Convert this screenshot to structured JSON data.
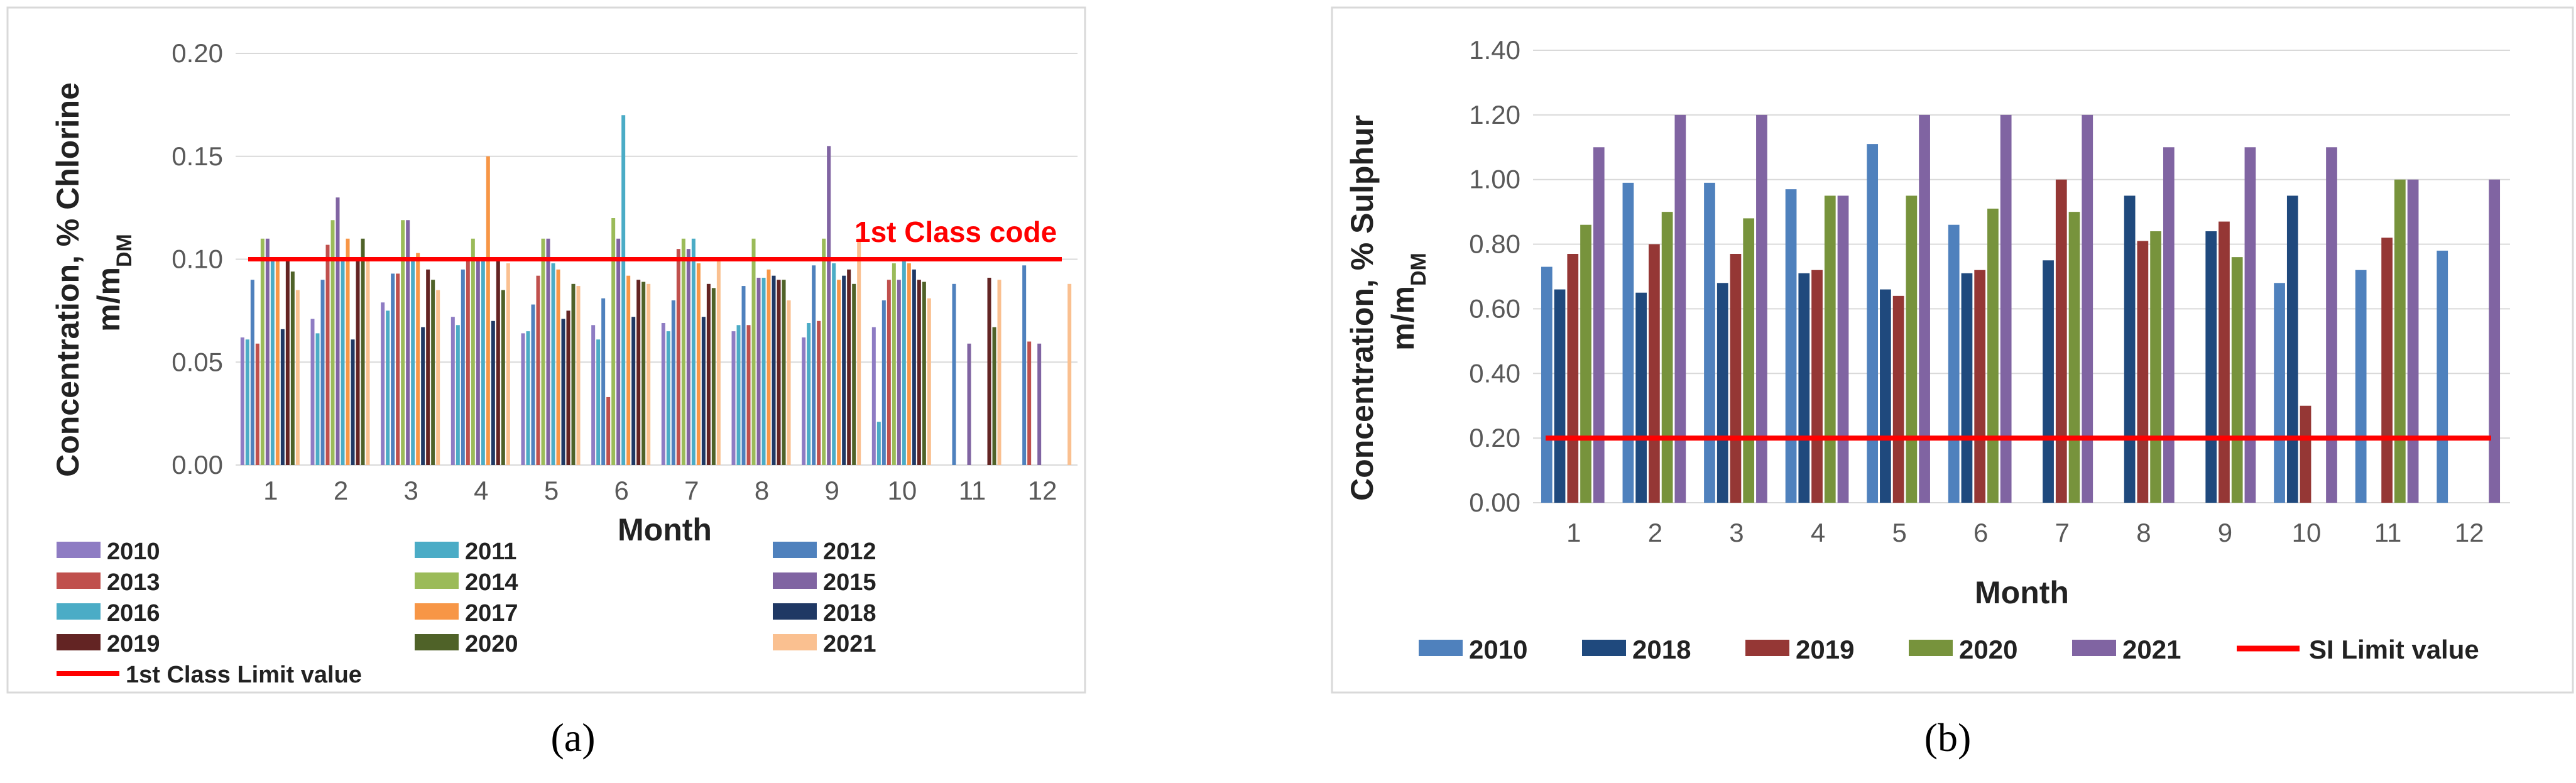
{
  "captions": {
    "a": "(a)",
    "b": "(b)"
  },
  "chart_data": [
    {
      "type": "bar",
      "panel": "a",
      "title": "",
      "xlabel": "Month",
      "ylabel_line1": "Concentration, % Chlorine",
      "ylabel_line2_main": "m/m",
      "ylabel_line2_sub": "DM",
      "ylim": [
        0,
        0.2
      ],
      "yticks": [
        "0.00",
        "0.05",
        "0.10",
        "0.15",
        "0.20"
      ],
      "categories": [
        "1",
        "2",
        "3",
        "4",
        "5",
        "6",
        "7",
        "8",
        "9",
        "10",
        "11",
        "12"
      ],
      "annotation": "1st Class code",
      "limit_value": 0.1,
      "limit_name": "1st Class Limit value",
      "limit_color": "#ff0000",
      "series": [
        {
          "name": "2010",
          "color": "#8e7cc3",
          "values": [
            0.062,
            0.071,
            0.079,
            0.072,
            0.064,
            0.068,
            0.069,
            0.065,
            0.062,
            0.067,
            null,
            null
          ]
        },
        {
          "name": "2011",
          "color": "#4bacc6",
          "values": [
            0.061,
            0.064,
            0.075,
            0.068,
            0.065,
            0.061,
            0.065,
            0.068,
            0.069,
            0.021,
            null,
            null
          ]
        },
        {
          "name": "2012",
          "color": "#4f81bd",
          "values": [
            0.09,
            0.09,
            0.093,
            0.095,
            0.078,
            0.081,
            0.08,
            0.087,
            0.097,
            0.08,
            0.088,
            0.097
          ]
        },
        {
          "name": "2013",
          "color": "#c0504d",
          "values": [
            0.059,
            0.107,
            0.093,
            0.1,
            0.092,
            0.033,
            0.105,
            0.068,
            0.07,
            0.09,
            null,
            0.06
          ]
        },
        {
          "name": "2014",
          "color": "#9bbb59",
          "values": [
            0.11,
            0.119,
            0.119,
            0.11,
            0.11,
            0.12,
            0.11,
            0.11,
            0.11,
            0.098,
            null,
            null
          ]
        },
        {
          "name": "2015",
          "color": "#8064a2",
          "values": [
            0.11,
            0.13,
            0.119,
            0.1,
            0.11,
            0.11,
            0.105,
            0.091,
            0.155,
            0.09,
            0.059,
            0.059
          ]
        },
        {
          "name": "2016",
          "color": "#4bacc6",
          "values": [
            0.101,
            0.099,
            0.1,
            0.1,
            0.098,
            0.17,
            0.11,
            0.091,
            0.098,
            0.1,
            null,
            null
          ]
        },
        {
          "name": "2017",
          "color": "#f79646",
          "values": [
            0.1,
            0.11,
            0.103,
            0.15,
            0.095,
            0.092,
            0.098,
            0.095,
            0.09,
            0.098,
            null,
            null
          ]
        },
        {
          "name": "2018",
          "color": "#1f3864",
          "values": [
            0.066,
            0.061,
            0.067,
            0.07,
            0.071,
            0.072,
            0.072,
            0.092,
            0.092,
            0.095,
            null,
            null
          ]
        },
        {
          "name": "2019",
          "color": "#632423",
          "values": [
            0.1,
            0.1,
            0.095,
            0.1,
            0.075,
            0.09,
            0.088,
            0.09,
            0.095,
            0.09,
            0.091,
            null
          ]
        },
        {
          "name": "2020",
          "color": "#4f6228",
          "values": [
            0.094,
            0.11,
            0.09,
            0.085,
            0.088,
            0.089,
            0.086,
            0.09,
            0.088,
            0.089,
            0.067,
            null
          ]
        },
        {
          "name": "2021",
          "color": "#fac090",
          "values": [
            0.085,
            0.1,
            0.085,
            0.098,
            0.087,
            0.088,
            0.1,
            0.08,
            0.11,
            0.081,
            0.09,
            0.088
          ]
        }
      ]
    },
    {
      "type": "bar",
      "panel": "b",
      "title": "",
      "xlabel": "Month",
      "ylabel_line1": "Concentration, % Sulphur",
      "ylabel_line2_main": "m/m",
      "ylabel_line2_sub": "DM",
      "ylim": [
        0,
        1.4
      ],
      "yticks": [
        "0.00",
        "0.20",
        "0.40",
        "0.60",
        "0.80",
        "1.00",
        "1.20",
        "1.40"
      ],
      "categories": [
        "1",
        "2",
        "3",
        "4",
        "5",
        "6",
        "7",
        "8",
        "9",
        "10",
        "11",
        "12"
      ],
      "limit_value": 0.2,
      "limit_name": "SI Limit value",
      "limit_color": "#ff0000",
      "series": [
        {
          "name": "2010",
          "color": "#4f81bd",
          "values": [
            0.73,
            0.99,
            0.99,
            0.97,
            1.11,
            0.86,
            null,
            null,
            null,
            0.68,
            0.72,
            0.78
          ]
        },
        {
          "name": "2018",
          "color": "#1f497d",
          "values": [
            0.66,
            0.65,
            0.68,
            0.71,
            0.66,
            0.71,
            0.75,
            0.95,
            0.84,
            0.95,
            null,
            null
          ]
        },
        {
          "name": "2019",
          "color": "#953735",
          "values": [
            0.77,
            0.8,
            0.77,
            0.72,
            0.64,
            0.72,
            1.0,
            0.81,
            0.87,
            0.3,
            0.82,
            null
          ]
        },
        {
          "name": "2020",
          "color": "#77933c",
          "values": [
            0.86,
            0.9,
            0.88,
            0.95,
            0.95,
            0.91,
            0.9,
            0.84,
            0.76,
            null,
            1.0,
            null
          ]
        },
        {
          "name": "2021",
          "color": "#8064a2",
          "values": [
            1.1,
            1.2,
            1.2,
            0.95,
            1.2,
            1.2,
            1.2,
            1.1,
            1.1,
            1.1,
            1.0,
            1.0
          ]
        }
      ]
    }
  ]
}
